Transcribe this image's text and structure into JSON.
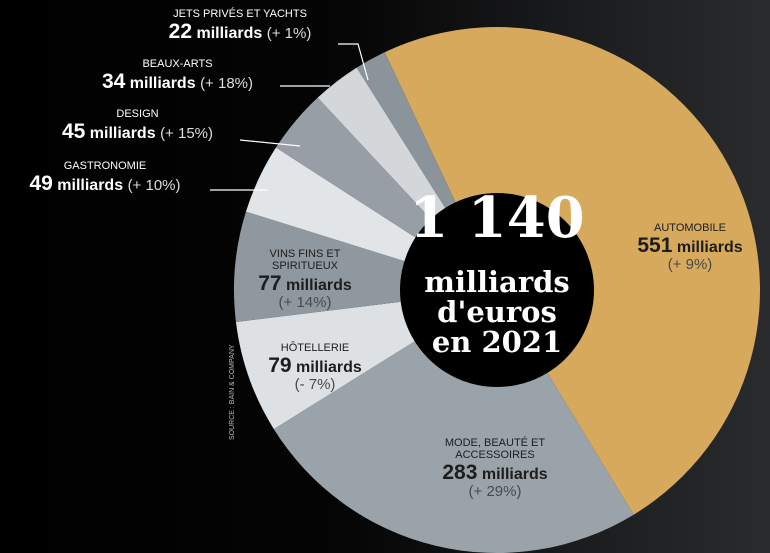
{
  "chart_data": {
    "type": "donut",
    "categories": [
      "AUTOMOBILE",
      "MODE, BEAUTÉ ET ACCESSOIRES",
      "HÔTELLERIE",
      "VINS FINS ET SPIRITUEUX",
      "GASTRONOMIE",
      "DESIGN",
      "BEAUX-ARTS",
      "JETS PRIVÉS ET YACHTS"
    ],
    "values": [
      551,
      283,
      79,
      77,
      49,
      45,
      34,
      22
    ],
    "value_unit": "milliards",
    "change_labels": [
      "(+ 9%)",
      "(+ 29%)",
      "(- 7%)",
      "(+ 14%)",
      "(+ 10%)",
      "(+ 15%)",
      "(+ 18%)",
      "(+ 1%)"
    ],
    "colors": [
      "#d6a95c",
      "#9ba3aa",
      "#dde1e4",
      "#8f989f",
      "#e2e5e7",
      "#979ea5",
      "#d3d7da",
      "#8c949b"
    ],
    "total": {
      "value": 1140,
      "label": "1 140"
    },
    "center_lines": [
      "milliards",
      "d'euros",
      "en 2021"
    ],
    "source": "SOURCE : BAIN & COMPANY"
  }
}
